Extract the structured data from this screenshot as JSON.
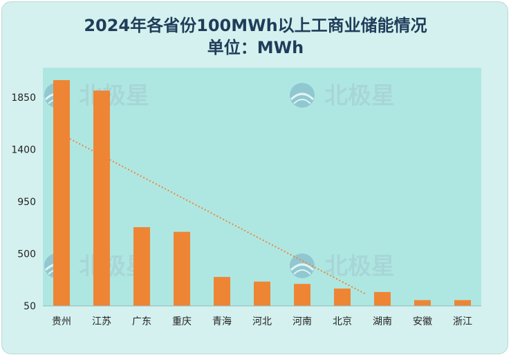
{
  "header": {
    "title": "2024年各省份100MWh以上工商业储能情况",
    "subtitle": "单位：MWh"
  },
  "watermark": {
    "text": "北极星",
    "icon": "polaris-logo-icon"
  },
  "colors": {
    "background": "#d5f1ef",
    "plot_area": "#aee7e2",
    "bar": "#ee8535",
    "trendline": "#ee8535",
    "title": "#1f3d5a"
  },
  "chart_data": {
    "type": "bar",
    "title": "2024年各省份100MWh以上工商业储能情况",
    "subtitle": "单位：MWh",
    "categories": [
      "贵州",
      "江苏",
      "广东",
      "重庆",
      "青海",
      "河北",
      "河南",
      "北京",
      "湖南",
      "安徽",
      "浙江"
    ],
    "values": [
      2000,
      1910,
      730,
      690,
      300,
      260,
      240,
      200,
      170,
      100,
      100
    ],
    "yticks": [
      50,
      500,
      950,
      1400,
      1850
    ],
    "ylim": [
      50,
      2060
    ],
    "grid": false,
    "legend": "none",
    "trendline": {
      "type": "linear",
      "style": "dotted"
    }
  }
}
